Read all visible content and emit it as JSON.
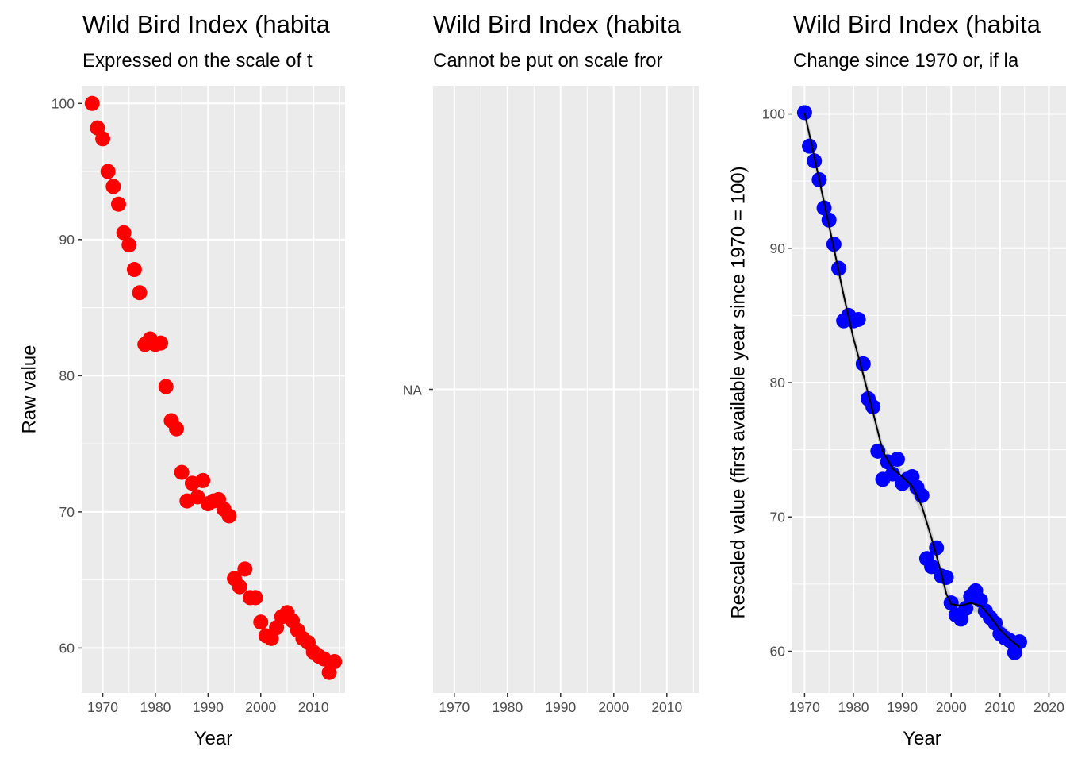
{
  "chart_data": [
    {
      "type": "scatter",
      "title": "Wild Bird Index (habita",
      "subtitle": "Expressed on the scale of t",
      "xlabel": "Year",
      "ylabel": "Raw value",
      "xlim": [
        1966,
        2016
      ],
      "ylim": [
        56.7,
        101.3
      ],
      "xticks": [
        1970,
        1980,
        1990,
        2000,
        2010
      ],
      "yticks": [
        60,
        70,
        80,
        90,
        100
      ],
      "point_color": "#ff0000",
      "grid": true,
      "series": [
        {
          "x": [
            1968,
            1969,
            1970,
            1971,
            1972,
            1973,
            1974,
            1975,
            1976,
            1977,
            1978,
            1979,
            1980,
            1981,
            1982,
            1983,
            1984,
            1985,
            1986,
            1987,
            1988,
            1989,
            1990,
            1991,
            1992,
            1993,
            1994,
            1995,
            1996,
            1997,
            1998,
            1999,
            2000,
            2001,
            2002,
            2003,
            2004,
            2005,
            2006,
            2007,
            2008,
            2009,
            2010,
            2011,
            2012,
            2013,
            2014
          ],
          "y": [
            100.0,
            98.2,
            97.4,
            95.0,
            93.9,
            92.6,
            90.5,
            89.6,
            87.8,
            86.1,
            82.3,
            82.7,
            82.3,
            82.4,
            79.2,
            76.7,
            76.1,
            72.9,
            70.8,
            72.1,
            71.1,
            72.3,
            70.6,
            70.8,
            70.9,
            70.2,
            69.7,
            65.1,
            64.5,
            65.8,
            63.7,
            63.7,
            61.9,
            60.9,
            60.7,
            61.5,
            62.3,
            62.6,
            62.0,
            61.3,
            60.7,
            60.4,
            59.7,
            59.4,
            59.2,
            58.2,
            59.0
          ]
        }
      ]
    },
    {
      "type": "scatter",
      "title": "Wild Bird Index (habita",
      "subtitle": "Cannot be put on scale fror",
      "xlabel": "",
      "ylabel": "",
      "xlim": [
        1966,
        2016
      ],
      "xticks": [
        1970,
        1980,
        1990,
        2000,
        2010
      ],
      "yticks_text": [
        "NA"
      ],
      "grid": true,
      "series": []
    },
    {
      "type": "scatter",
      "title": "Wild Bird Index (habita",
      "subtitle": "Change since 1970 or, if la",
      "xlabel": "Year",
      "ylabel": "Rescaled value (first available year since 1970 = 100)",
      "xlim": [
        1967.5,
        2023.5
      ],
      "ylim": [
        56.9,
        102.1
      ],
      "xticks": [
        1970,
        1980,
        1990,
        2000,
        2010,
        2020
      ],
      "yticks": [
        60,
        70,
        80,
        90,
        100
      ],
      "point_color": "#0000ff",
      "smooth_color": "#000000",
      "grid": true,
      "series": [
        {
          "x": [
            1970,
            1971,
            1972,
            1973,
            1974,
            1975,
            1976,
            1977,
            1978,
            1979,
            1980,
            1981,
            1982,
            1983,
            1984,
            1985,
            1986,
            1987,
            1988,
            1989,
            1990,
            1991,
            1992,
            1993,
            1994,
            1995,
            1996,
            1997,
            1998,
            1999,
            2000,
            2001,
            2002,
            2003,
            2004,
            2005,
            2006,
            2007,
            2008,
            2009,
            2010,
            2011,
            2012,
            2013,
            2014
          ],
          "y": [
            100.1,
            97.6,
            96.5,
            95.1,
            93.0,
            92.1,
            90.3,
            88.5,
            84.6,
            85.0,
            84.6,
            84.7,
            81.4,
            78.8,
            78.2,
            74.9,
            72.8,
            74.1,
            73.2,
            74.3,
            72.5,
            72.8,
            73.0,
            72.2,
            71.6,
            66.9,
            66.3,
            67.7,
            65.6,
            65.5,
            63.6,
            62.7,
            62.4,
            63.2,
            64.1,
            64.5,
            63.8,
            63.0,
            62.5,
            62.1,
            61.3,
            61.0,
            60.8,
            59.9,
            60.7
          ]
        }
      ],
      "smooth": {
        "x": [
          1970,
          1972,
          1974,
          1976,
          1978,
          1980,
          1982,
          1984,
          1986,
          1988,
          1990,
          1992,
          1994,
          1996,
          1998,
          1999,
          2000,
          2002,
          2004,
          2006,
          2008,
          2010,
          2012,
          2014
        ],
        "y": [
          100.1,
          96.8,
          93.4,
          90.0,
          86.5,
          83.3,
          80.6,
          77.8,
          74.9,
          73.6,
          73.0,
          72.3,
          70.8,
          68.4,
          65.8,
          64.3,
          63.5,
          63.4,
          63.6,
          63.4,
          62.6,
          61.6,
          60.9,
          60.3
        ]
      }
    }
  ]
}
